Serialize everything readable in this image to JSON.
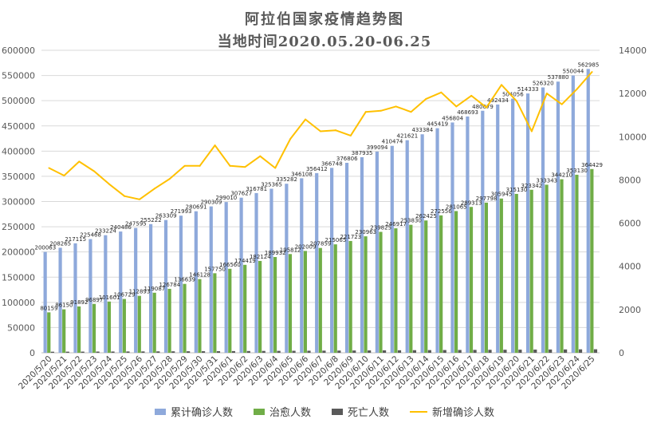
{
  "title_line1": "阿拉伯国家疫情趋势图",
  "title_line2": "当地时间2020.05.20-06.25",
  "colors": {
    "cumulative": "#8EA9DB",
    "recovered": "#70AD47",
    "deaths": "#595959",
    "new": "#FFC000",
    "grid": "#D9D9D9",
    "axis_text": "#595959"
  },
  "chart_data": {
    "type": "bar",
    "categories": [
      "2020/5/20",
      "2020/5/21",
      "2020/5/22",
      "2020/5/23",
      "2020/5/24",
      "2020/5/25",
      "2020/5/26",
      "2020/5/27",
      "2020/5/28",
      "2020/5/29",
      "2020/5/30",
      "2020/5/31",
      "2020/6/1",
      "2020/6/2",
      "2020/6/3",
      "2020/6/4",
      "2020/6/5",
      "2020/6/6",
      "2020/6/7",
      "2020/6/8",
      "2020/6/9",
      "2020/6/10",
      "2020/6/11",
      "2020/6/12",
      "2020/6/13",
      "2020/6/14",
      "2020/6/15",
      "2020/6/16",
      "2020/6/17",
      "2020/6/18",
      "2020/6/19",
      "2020/6/20",
      "2020/6/21",
      "2020/6/22",
      "2020/6/23",
      "2020/6/24",
      "2020/6/25"
    ],
    "series": [
      {
        "name": "累计确诊人数",
        "axis": "left",
        "kind": "bar",
        "values": [
          200063,
          208265,
          217115,
          225468,
          233224,
          240486,
          247595,
          255222,
          263309,
          271993,
          280691,
          290309,
          299010,
          307627,
          316781,
          325365,
          335282,
          346108,
          356412,
          366748,
          376806,
          387935,
          399094,
          410474,
          421621,
          433384,
          445419,
          456804,
          468693,
          480079,
          492434,
          504056,
          514333,
          526320,
          537880,
          550044,
          562985
        ],
        "labels": [
          "200063",
          "208265",
          "217115",
          "225468",
          "233224",
          "240486",
          "247595",
          "255222",
          "263309",
          "271993",
          "280691",
          "290309",
          "299010",
          "307627",
          "316781",
          "325365",
          "335282",
          "346108",
          "356412",
          "366748",
          "376806",
          "387935",
          "399094",
          "410474",
          "421621",
          "433384",
          "445419",
          "456804",
          "468693",
          "480079",
          "492434",
          "504056",
          "514333",
          "526320",
          "537880",
          "550044",
          "562985"
        ]
      },
      {
        "name": "治愈人数",
        "axis": "left",
        "kind": "bar",
        "values": [
          80159,
          86150,
          91892,
          96897,
          101601,
          106729,
          112893,
          119087,
          126784,
          136639,
          146128,
          157750,
          166560,
          174419,
          182124,
          189932,
          195812,
          202009,
          207859,
          215065,
          221723,
          230963,
          239825,
          246917,
          253830,
          262425,
          272556,
          281065,
          289313,
          297798,
          305945,
          315130,
          323342,
          333343,
          344210,
          353130,
          364429
        ],
        "labels": [
          "80159",
          "86150",
          "91892",
          "96897",
          "101601",
          "106729",
          "112893",
          "119087",
          "126784",
          "136639",
          "146128",
          "157750",
          "166560",
          "174419",
          "182124",
          "189932",
          "195812",
          "202009",
          "207859",
          "215065",
          "221723",
          "230963",
          "239825",
          "246917",
          "253830",
          "262425",
          "272556",
          "281065",
          "289313",
          "297798",
          "305945",
          "315130",
          "323342",
          "333343",
          "344210",
          "353130",
          "364429"
        ]
      },
      {
        "name": "死亡人数",
        "axis": "left",
        "kind": "bar",
        "values": [
          2100,
          2200,
          2300,
          2400,
          2500,
          2600,
          2700,
          2800,
          2900,
          3000,
          3100,
          3200,
          3350,
          3500,
          3650,
          3800,
          3950,
          4100,
          4250,
          4400,
          4550,
          4700,
          4850,
          5000,
          5150,
          5300,
          5450,
          5600,
          5750,
          5900,
          6050,
          6200,
          6350,
          6500,
          6650,
          6800,
          6950
        ]
      },
      {
        "name": "新增确诊人数",
        "axis": "right",
        "kind": "line",
        "values": [
          8550,
          8200,
          8850,
          8400,
          7800,
          7250,
          7100,
          7600,
          8050,
          8650,
          8650,
          9600,
          8650,
          8600,
          9100,
          8550,
          9900,
          10800,
          10250,
          10300,
          10050,
          11150,
          11200,
          11400,
          11150,
          11750,
          12050,
          11400,
          11900,
          11350,
          12400,
          11650,
          10250,
          12000,
          11500,
          12200,
          13000
        ]
      }
    ],
    "y_left": {
      "min": 0,
      "max": 600000,
      "ticks": [
        0,
        50000,
        100000,
        150000,
        200000,
        250000,
        300000,
        350000,
        400000,
        450000,
        500000,
        550000,
        600000
      ]
    },
    "y_right": {
      "min": 0,
      "max": 14000,
      "ticks": [
        0,
        2000,
        4000,
        6000,
        8000,
        10000,
        12000,
        14000
      ]
    },
    "grid": true,
    "legend_position": "bottom"
  }
}
